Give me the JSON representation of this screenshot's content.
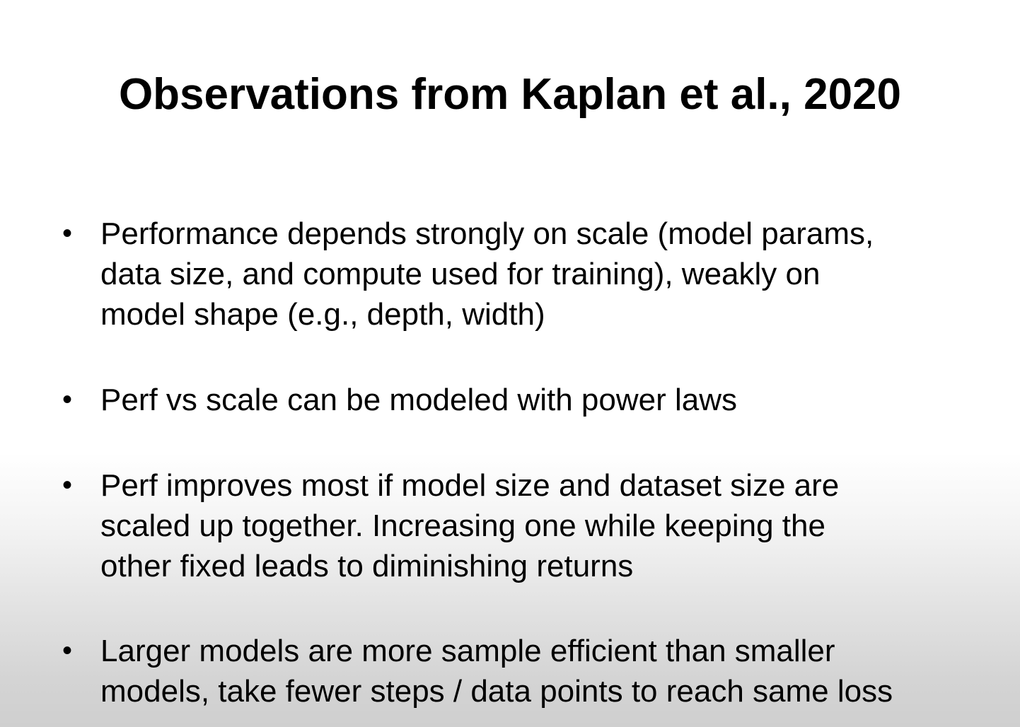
{
  "slide": {
    "title": "Observations from Kaplan et al., 2020",
    "bullet_marker": "•",
    "bullets": [
      {
        "text": "Performance depends strongly on scale (model params,\ndata size, and compute used for training), weakly on\nmodel shape (e.g., depth, width)"
      },
      {
        "text": "Perf vs scale can be modeled with power laws"
      },
      {
        "text": "Perf improves most if model size and dataset size are\nscaled up together. Increasing one while keeping the\nother fixed leads to diminishing returns"
      },
      {
        "text": "Larger models are more sample efficient than smaller\nmodels, take fewer steps / data points to reach same loss"
      }
    ]
  }
}
